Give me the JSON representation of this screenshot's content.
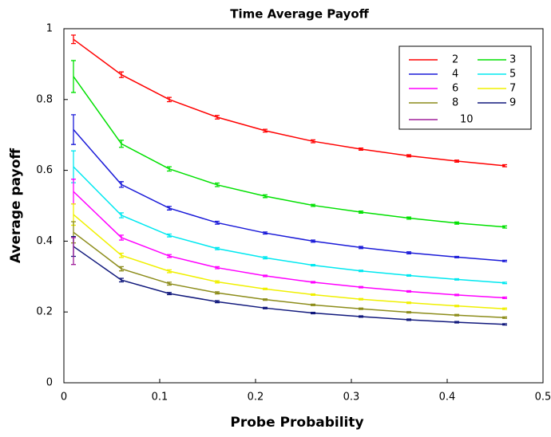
{
  "chart_data": {
    "type": "line",
    "title": "Time Average Payoff",
    "x_label": "Probe Probability",
    "y_label": "Average payoff",
    "x": [
      0.01,
      0.06,
      0.11,
      0.16,
      0.21,
      0.26,
      0.31,
      0.36,
      0.41,
      0.46
    ],
    "xlim": [
      0,
      0.5
    ],
    "xticks": [
      0,
      0.1,
      0.2,
      0.3,
      0.4,
      0.5
    ],
    "ylim": [
      0,
      1
    ],
    "yticks": [
      0,
      0.2,
      0.4,
      0.6,
      0.8,
      1
    ],
    "legend": "upper right",
    "series": [
      {
        "name": "2",
        "color": "#ff0000",
        "values": [
          0.97,
          0.87,
          0.8,
          0.75,
          0.712,
          0.682,
          0.66,
          0.641,
          0.626,
          0.613
        ],
        "errors": [
          0.012,
          0.008,
          0.006,
          0.005,
          0.004,
          0.004,
          0.003,
          0.003,
          0.003,
          0.003
        ]
      },
      {
        "name": "3",
        "color": "#00e000",
        "values": [
          0.865,
          0.675,
          0.604,
          0.559,
          0.527,
          0.501,
          0.482,
          0.465,
          0.451,
          0.44
        ],
        "errors": [
          0.045,
          0.01,
          0.006,
          0.005,
          0.004,
          0.003,
          0.003,
          0.003,
          0.003,
          0.003
        ]
      },
      {
        "name": "4",
        "color": "#1a1ad8",
        "values": [
          0.715,
          0.56,
          0.493,
          0.452,
          0.423,
          0.4,
          0.382,
          0.367,
          0.355,
          0.344
        ],
        "errors": [
          0.042,
          0.008,
          0.005,
          0.004,
          0.003,
          0.003,
          0.003,
          0.003,
          0.002,
          0.002
        ]
      },
      {
        "name": "5",
        "color": "#00e8f0",
        "values": [
          0.61,
          0.473,
          0.416,
          0.379,
          0.353,
          0.332,
          0.316,
          0.303,
          0.292,
          0.282
        ],
        "errors": [
          0.045,
          0.007,
          0.004,
          0.003,
          0.003,
          0.002,
          0.002,
          0.002,
          0.002,
          0.002
        ]
      },
      {
        "name": "6",
        "color": "#ff00ff",
        "values": [
          0.54,
          0.41,
          0.358,
          0.325,
          0.302,
          0.284,
          0.27,
          0.258,
          0.248,
          0.24
        ],
        "errors": [
          0.035,
          0.007,
          0.004,
          0.003,
          0.002,
          0.002,
          0.002,
          0.002,
          0.002,
          0.002
        ]
      },
      {
        "name": "7",
        "color": "#f0f000",
        "values": [
          0.475,
          0.36,
          0.315,
          0.285,
          0.265,
          0.249,
          0.236,
          0.226,
          0.217,
          0.209
        ],
        "errors": [
          0.03,
          0.006,
          0.004,
          0.003,
          0.002,
          0.002,
          0.002,
          0.002,
          0.002,
          0.002
        ]
      },
      {
        "name": "8",
        "color": "#8c8c1a",
        "values": [
          0.425,
          0.322,
          0.28,
          0.254,
          0.235,
          0.22,
          0.209,
          0.199,
          0.191,
          0.184
        ],
        "errors": [
          0.03,
          0.006,
          0.004,
          0.003,
          0.002,
          0.002,
          0.002,
          0.002,
          0.002,
          0.002
        ]
      },
      {
        "name": "9",
        "color": "#10187c",
        "values": [
          0.385,
          0.29,
          0.252,
          0.229,
          0.211,
          0.197,
          0.187,
          0.178,
          0.171,
          0.165
        ],
        "errors": [
          0.028,
          0.005,
          0.003,
          0.003,
          0.002,
          0.002,
          0.002,
          0.002,
          0.002,
          0.002
        ]
      },
      {
        "name": "10",
        "color": "#a0209c",
        "values": [
          0.372,
          null,
          null,
          null,
          null,
          null,
          null,
          null,
          null,
          null
        ],
        "errors": [
          0.038,
          null,
          null,
          null,
          null,
          null,
          null,
          null,
          null,
          null
        ]
      }
    ]
  }
}
